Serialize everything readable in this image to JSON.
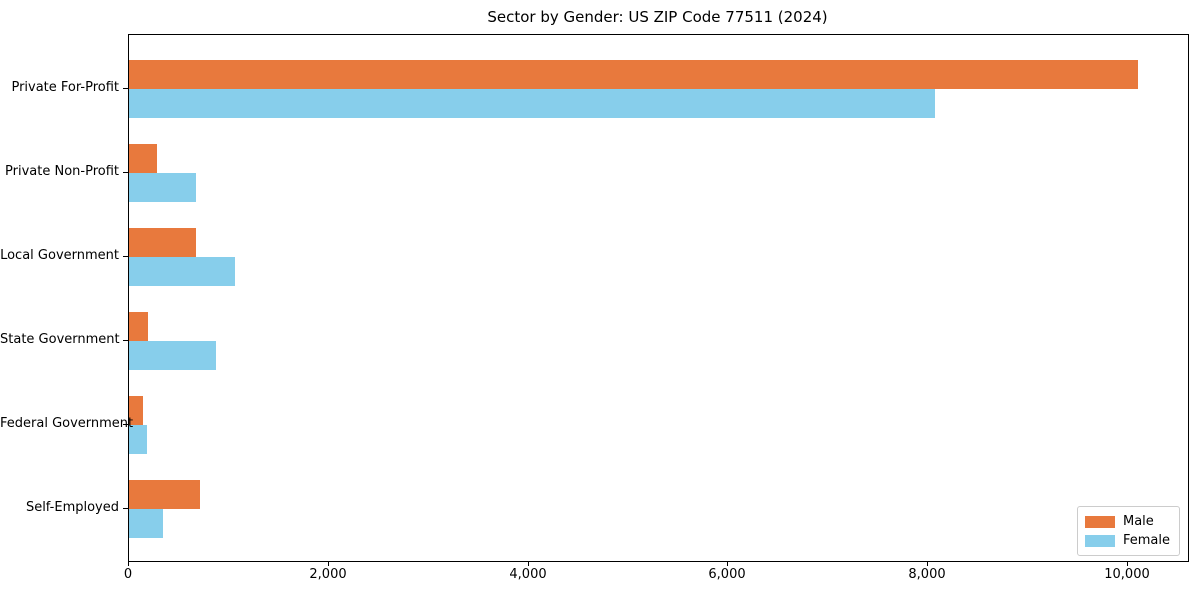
{
  "chart_data": {
    "type": "bar",
    "orientation": "horizontal",
    "title": "Sector by Gender: US ZIP Code 77511 (2024)",
    "categories": [
      "Private For-Profit",
      "Private Non-Profit",
      "Local Government",
      "State Government",
      "Federal Government",
      "Self-Employed"
    ],
    "series": [
      {
        "name": "Male",
        "color": "#E8793D",
        "values": [
          10100,
          280,
          670,
          190,
          140,
          710
        ]
      },
      {
        "name": "Female",
        "color": "#87CEEB",
        "values": [
          8070,
          670,
          1060,
          870,
          180,
          340
        ]
      }
    ],
    "x_ticks": [
      0,
      2000,
      4000,
      6000,
      8000,
      10000
    ],
    "x_tick_labels": [
      "0",
      "2,000",
      "4,000",
      "6,000",
      "8,000",
      "10,000"
    ],
    "xlim": [
      0,
      10600
    ],
    "ylabel": "",
    "xlabel": "",
    "grid": false,
    "legend_position": "lower right",
    "background_color": "#ffffff",
    "spine_color": "#000000"
  }
}
